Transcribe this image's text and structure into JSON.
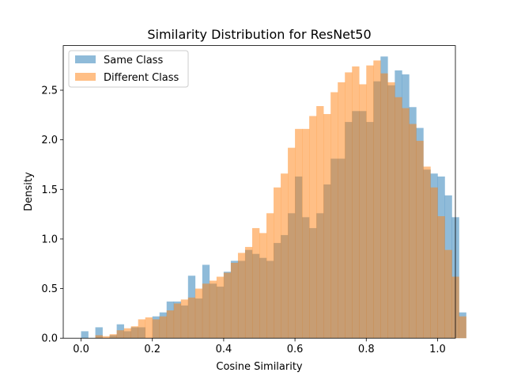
{
  "chart_data": {
    "type": "bar",
    "title": "Similarity Distribution for ResNet50",
    "xlabel": "Cosine Similarity",
    "ylabel": "Density",
    "xlim": [
      -0.05,
      1.05
    ],
    "ylim": [
      0,
      2.95
    ],
    "xticks": [
      0.0,
      0.2,
      0.4,
      0.6,
      0.8,
      1.0
    ],
    "xtick_labels": [
      "0.0",
      "0.2",
      "0.4",
      "0.6",
      "0.8",
      "1.0"
    ],
    "yticks": [
      0.0,
      0.5,
      1.0,
      1.5,
      2.0,
      2.5
    ],
    "ytick_labels": [
      "0.0",
      "0.5",
      "1.0",
      "1.5",
      "2.0",
      "2.5"
    ],
    "grid": false,
    "legend_position": "top-left",
    "bin_start": 0.0,
    "bin_width": 0.02,
    "series": [
      {
        "name": "Same Class",
        "color": "#1f77b4",
        "alpha": 0.5,
        "values": [
          0.07,
          0,
          0.11,
          0,
          0.03,
          0.14,
          0.07,
          0.11,
          0.11,
          0,
          0.22,
          0.26,
          0.37,
          0.37,
          0.33,
          0.63,
          0.4,
          0.74,
          0.55,
          0.52,
          0.67,
          0.78,
          0.78,
          0.89,
          0.85,
          0.81,
          0.78,
          0.96,
          1.04,
          1.26,
          1.63,
          1.22,
          1.11,
          1.26,
          1.55,
          1.81,
          1.81,
          2.18,
          2.29,
          2.29,
          2.18,
          2.59,
          2.84,
          2.55,
          2.7,
          2.66,
          2.33,
          2.12,
          1.7,
          1.66,
          1.63,
          1.44,
          1.22,
          0.26
        ]
      },
      {
        "name": "Different Class",
        "color": "#ff7f0e",
        "alpha": 0.5,
        "values": [
          0,
          0,
          0.03,
          0.02,
          0.04,
          0.08,
          0.1,
          0.12,
          0.19,
          0.21,
          0.19,
          0.22,
          0.28,
          0.35,
          0.39,
          0.41,
          0.5,
          0.55,
          0.58,
          0.62,
          0.66,
          0.76,
          0.86,
          0.92,
          1.11,
          1.06,
          1.26,
          1.52,
          1.66,
          1.92,
          2.11,
          2.11,
          2.24,
          2.34,
          2.26,
          2.48,
          2.58,
          2.68,
          2.74,
          2.56,
          2.75,
          2.8,
          2.67,
          2.58,
          2.43,
          2.32,
          2.16,
          1.99,
          1.73,
          1.52,
          1.23,
          0.89,
          0.62,
          0.22
        ]
      }
    ]
  }
}
